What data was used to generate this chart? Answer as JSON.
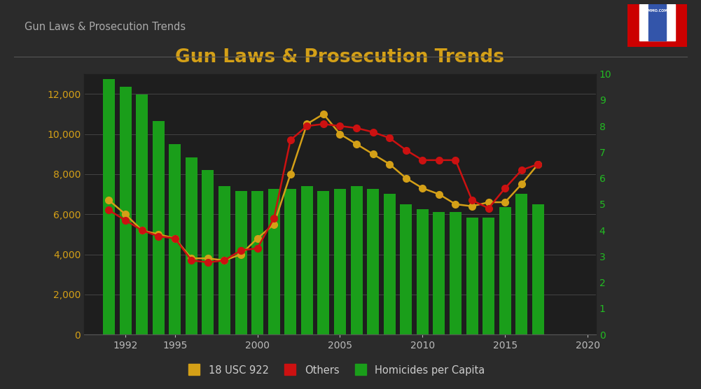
{
  "title": "Gun Laws & Prosecution Trends",
  "header": "Gun Laws & Prosecution Trends",
  "bg_color": "#2b2b2b",
  "plot_bg_color": "#1e1e1e",
  "title_color": "#D4A017",
  "header_color": "#aaaaaa",
  "bar_color": "#1a9e1a",
  "line1_color": "#D4A017",
  "line2_color": "#CC1111",
  "right_axis_color": "#22BB22",
  "years": [
    1991,
    1992,
    1993,
    1994,
    1995,
    1996,
    1997,
    1998,
    1999,
    2000,
    2001,
    2002,
    2003,
    2004,
    2005,
    2006,
    2007,
    2008,
    2009,
    2010,
    2011,
    2012,
    2013,
    2014,
    2015,
    2016,
    2017
  ],
  "homicides_per_capita": [
    9.8,
    9.5,
    9.2,
    8.2,
    7.3,
    6.8,
    6.3,
    5.7,
    5.5,
    5.5,
    5.6,
    5.6,
    5.7,
    5.5,
    5.6,
    5.7,
    5.6,
    5.4,
    5.0,
    4.8,
    4.7,
    4.7,
    4.5,
    4.5,
    4.9,
    5.4,
    5.0
  ],
  "usc922": [
    6700,
    6000,
    5200,
    5000,
    4800,
    3800,
    3800,
    3700,
    4000,
    4800,
    5500,
    8000,
    10500,
    11000,
    10000,
    9500,
    9000,
    8500,
    7800,
    7300,
    7000,
    6500,
    6400,
    6600,
    6600,
    7500,
    8500
  ],
  "others": [
    6200,
    5700,
    5200,
    4900,
    4800,
    3700,
    3600,
    3700,
    4200,
    4300,
    5800,
    9700,
    10400,
    10500,
    10400,
    10300,
    10100,
    9800,
    9200,
    8700,
    8700,
    8700,
    6700,
    6300,
    7300,
    8200,
    8500
  ],
  "ylim_left": [
    0,
    13000
  ],
  "ylim_right": [
    0,
    10
  ],
  "xlim": [
    1989.5,
    2020.5
  ],
  "yticks_left": [
    0,
    2000,
    4000,
    6000,
    8000,
    10000,
    12000
  ],
  "yticks_right": [
    0,
    1,
    2,
    3,
    4,
    5,
    6,
    7,
    8,
    9,
    10
  ],
  "xticks": [
    1992,
    1995,
    2000,
    2005,
    2010,
    2015,
    2020
  ],
  "legend_labels": [
    "18 USC 922",
    "Others",
    "Homicides per Capita"
  ]
}
